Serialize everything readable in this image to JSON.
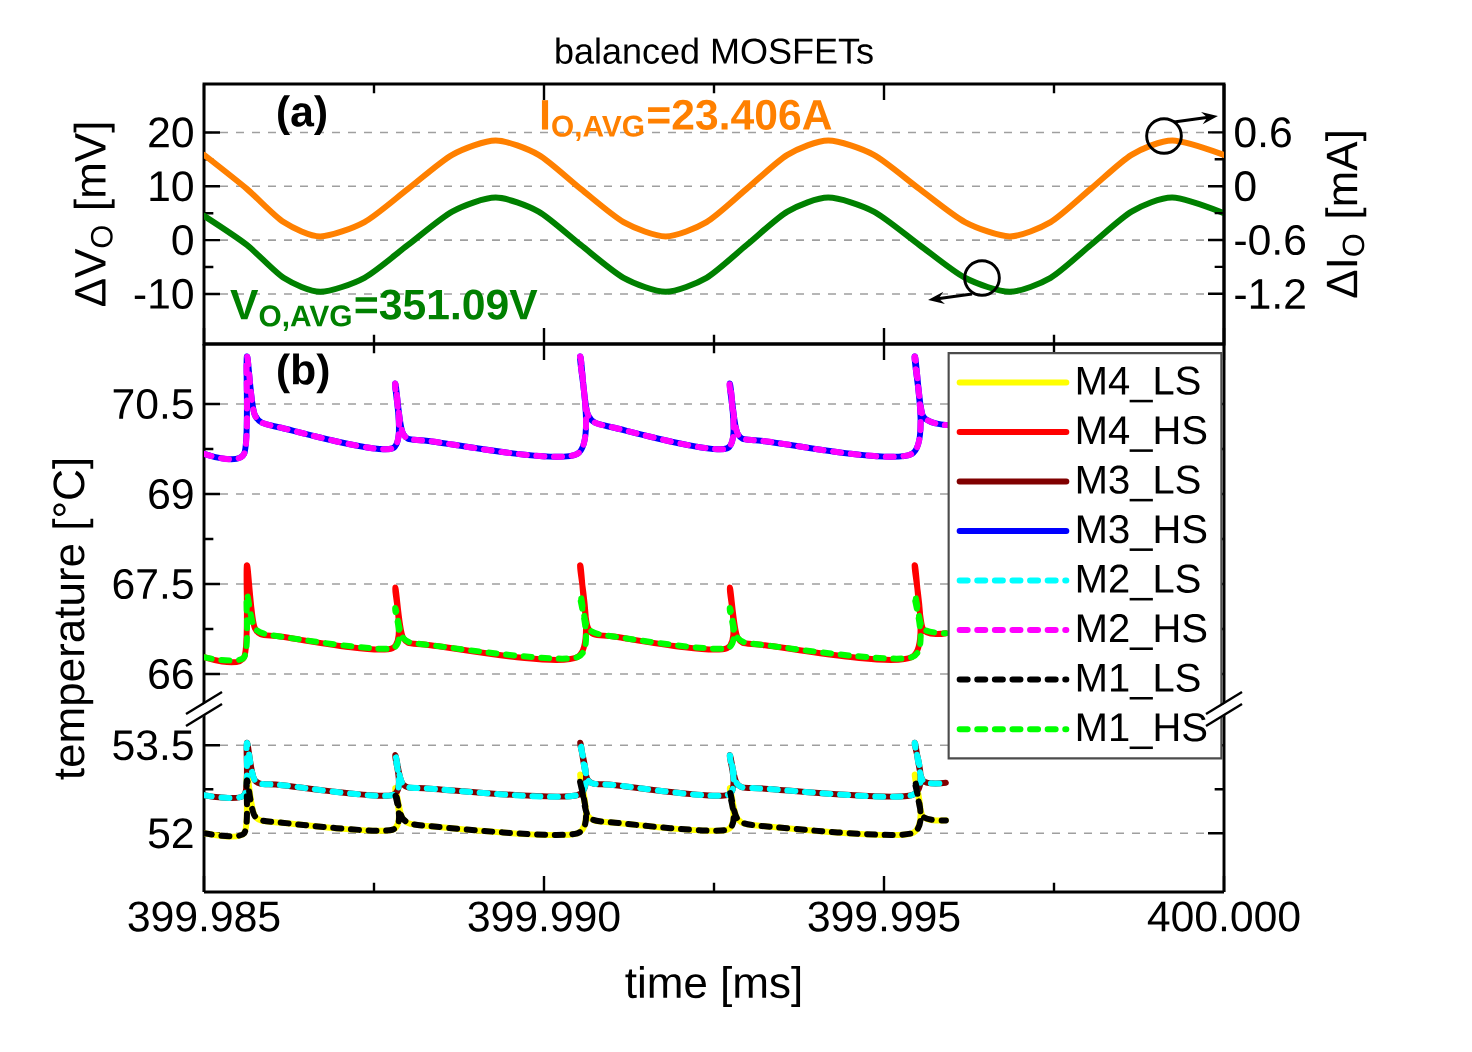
{
  "chart_data": [
    {
      "type": "line",
      "title": "balanced MOSFETs",
      "ylabel": "ΔV$_{O}$ [mV]",
      "y2label": "ΔI$_{O}$ [mA]",
      "annotations": [
        "(a)",
        "I$_{O,AVG}$=23.406A",
        "V$_{O,AVG}$=351.09V"
      ],
      "x": [
        399.985,
        399.98563,
        399.98617,
        399.98671,
        399.98736,
        399.988,
        399.98865,
        399.98929,
        399.98992,
        399.99054,
        399.99117,
        399.99179,
        399.99239,
        399.99298,
        399.99358,
        399.99418,
        399.99485,
        399.99552,
        399.99619,
        399.99685,
        399.99745,
        399.99804,
        399.99864,
        399.99924,
        400.0
      ],
      "xlim": [
        399.985,
        400.0
      ],
      "ylim": [
        -19.3,
        29
      ],
      "yticks": [
        -10,
        0,
        10,
        20
      ],
      "y2lim": [
        -1.76,
        1.14
      ],
      "y2ticks": [
        -1.2,
        -0.6,
        0,
        0.6
      ],
      "grid": "y",
      "tick_labels": "y",
      "series": [
        {
          "color": "#ff8000",
          "axis": "y2",
          "values": [
            0.35,
            -0.03,
            -0.4,
            -0.56,
            -0.4,
            -0.03,
            0.35,
            0.51,
            0.35,
            -0.03,
            -0.4,
            -0.56,
            -0.4,
            -0.03,
            0.35,
            0.51,
            0.35,
            -0.03,
            -0.4,
            -0.56,
            -0.4,
            -0.03,
            0.35,
            0.51,
            0.35
          ]
        },
        {
          "color": "#008000",
          "values": [
            4.5,
            -0.9,
            -7.0,
            -9.6,
            -7.0,
            -0.9,
            5.3,
            7.9,
            5.3,
            -0.9,
            -7.0,
            -9.6,
            -7.0,
            -0.9,
            5.3,
            7.9,
            5.3,
            -0.9,
            -7.0,
            -9.6,
            -7.0,
            -0.9,
            5.3,
            7.9,
            5.0
          ]
        }
      ]
    },
    {
      "type": "line",
      "ylabel": "temperature [°C]",
      "annotations": [
        "(b)"
      ],
      "x": [
        399.985,
        399.98559,
        399.98563,
        399.98575,
        399.98615,
        399.98777,
        399.98781,
        399.98793,
        399.98833,
        399.99049,
        399.99053,
        399.99065,
        399.99105,
        399.99269,
        399.99273,
        399.99285,
        399.99325,
        399.99541,
        399.99545,
        399.99557,
        399.99591
      ],
      "xlim": [
        399.985,
        400.0
      ],
      "ylim": [
        65.4,
        71.5
      ],
      "yticks": [
        66,
        67.5,
        69,
        70.5
      ],
      "grid": "y",
      "tick_labels": "y",
      "legend": "right",
      "series": [
        {
          "name": "M4_HS",
          "color": "#ff0000",
          "values": [
            66.28,
            66.28,
            67.81,
            66.76,
            66.62,
            66.43,
            67.44,
            66.6,
            66.48,
            66.28,
            67.81,
            66.76,
            66.62,
            66.43,
            67.44,
            66.6,
            66.48,
            66.28,
            67.81,
            66.76,
            66.68
          ]
        },
        {
          "name": "M3_HS",
          "color": "#0000ff",
          "values": [
            69.67,
            69.67,
            71.29,
            70.31,
            70.1,
            69.76,
            70.84,
            70.0,
            69.88,
            69.67,
            71.29,
            70.31,
            70.1,
            69.76,
            70.84,
            70.0,
            69.88,
            69.67,
            71.29,
            70.31,
            70.15
          ]
        },
        {
          "name": "M2_HS",
          "color": "#ff00ff",
          "line_style": "dotted",
          "values": [
            69.67,
            69.67,
            71.29,
            70.31,
            70.1,
            69.76,
            70.84,
            70.0,
            69.88,
            69.67,
            71.29,
            70.31,
            70.1,
            69.76,
            70.84,
            70.0,
            69.88,
            69.67,
            71.29,
            70.31,
            70.15
          ]
        },
        {
          "name": "M1_HS",
          "color": "#00ff00",
          "line_style": "dotted",
          "values": [
            66.28,
            66.28,
            67.31,
            66.76,
            66.62,
            66.43,
            67.1,
            66.6,
            66.48,
            66.28,
            67.31,
            66.76,
            66.62,
            66.43,
            67.1,
            66.6,
            66.48,
            66.28,
            67.31,
            66.76,
            66.68
          ]
        }
      ]
    },
    {
      "type": "line",
      "xlabel": "time [ms]",
      "x": [
        399.985,
        399.98559,
        399.98563,
        399.98575,
        399.98615,
        399.98777,
        399.98781,
        399.98793,
        399.98833,
        399.99049,
        399.99053,
        399.99065,
        399.99105,
        399.99269,
        399.99273,
        399.99285,
        399.99325,
        399.99541,
        399.99545,
        399.99557,
        399.99591
      ],
      "xlim": [
        399.985,
        400.0
      ],
      "xticks": [
        399.985,
        {
          "value": 399.99,
          "label": "399.990"
        },
        399.995,
        {
          "value": 400.0,
          "label": "400.000"
        }
      ],
      "ylim": [
        51,
        54.1
      ],
      "yticks": [
        52,
        53.5
      ],
      "grid": "y",
      "series": [
        {
          "name": "M4_LS",
          "color": "#ffff00",
          "values": [
            52.0,
            52.0,
            53.0,
            52.29,
            52.18,
            52.06,
            52.77,
            52.24,
            52.12,
            52.0,
            53.0,
            52.29,
            52.18,
            52.06,
            52.77,
            52.24,
            52.12,
            52.0,
            53.0,
            52.29,
            52.22
          ]
        },
        {
          "name": "M3_LS",
          "color": "#800000",
          "values": [
            52.65,
            52.65,
            53.54,
            52.9,
            52.82,
            52.65,
            53.33,
            52.83,
            52.76,
            52.65,
            53.54,
            52.9,
            52.82,
            52.65,
            53.33,
            52.83,
            52.76,
            52.65,
            53.54,
            52.9,
            52.86
          ]
        },
        {
          "name": "M2_LS",
          "color": "#00ffff",
          "line_style": "dotted",
          "values": [
            52.65,
            52.65,
            53.54,
            52.9,
            52.82,
            52.65,
            53.33,
            52.83,
            52.76,
            52.65,
            53.54,
            52.9,
            52.82,
            52.65,
            53.33,
            52.83,
            52.76,
            52.65,
            53.54,
            52.9,
            52.86
          ]
        },
        {
          "name": "M1_LS",
          "color": "#000000",
          "line_style": "dotted",
          "values": [
            52.0,
            52.0,
            52.9,
            52.29,
            52.18,
            52.06,
            52.7,
            52.24,
            52.12,
            52.0,
            52.9,
            52.29,
            52.18,
            52.06,
            52.7,
            52.24,
            52.12,
            52.0,
            52.9,
            52.29,
            52.22
          ]
        }
      ]
    }
  ]
}
